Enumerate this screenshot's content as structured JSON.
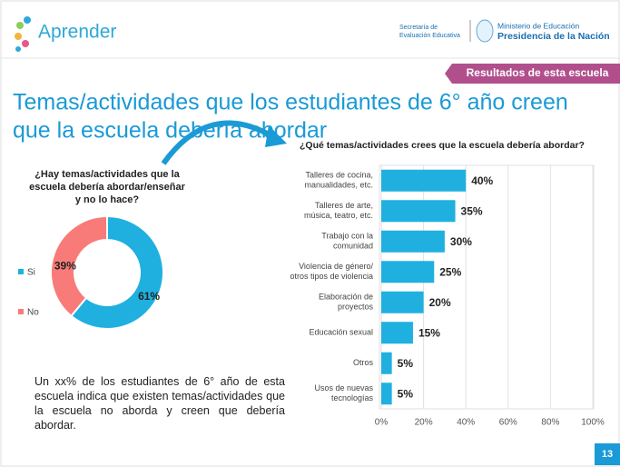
{
  "header": {
    "logo": "Aprender",
    "secretaria": [
      "Secretaría de",
      "Evaluación Educativa"
    ],
    "ministerio": [
      "Ministerio de Educación",
      "Presidencia de la Nación"
    ],
    "tab": "Resultados de esta escuela"
  },
  "title": [
    "Temas/actividades que los estudiantes de 6° año creen",
    "que la escuela debería abordar"
  ],
  "paragraph": "Un xx% de los estudiantes de 6° año de esta escuela indica que existen temas/actividades que la escuela no aborda y creen que debería abordar.",
  "page_number": "13",
  "chart_data": [
    {
      "type": "pie",
      "title": [
        "¿Hay temas/actividades que la",
        "escuela debería abordar/enseñar",
        "y no lo hace?"
      ],
      "categories": [
        "Si",
        "No"
      ],
      "values": [
        61,
        39
      ],
      "value_labels": [
        "61%",
        "39%"
      ],
      "colors": [
        "#1fb0e0",
        "#f87b79"
      ],
      "donut": true,
      "legend": "left"
    },
    {
      "type": "barh",
      "title": "¿Qué temas/actividades crees que la escuela debería abordar?",
      "categories": [
        "Talleres de cocina,\nmanualidades, etc.",
        "Talleres de arte,\nmúsica, teatro, etc.",
        "Trabajo con la\ncomunidad",
        "Violencia de género/\notros tipos de violencia",
        "Elaboración de\nproyectos",
        "Educación sexual",
        "Otros",
        "Usos de nuevas\ntecnologías"
      ],
      "values": [
        40,
        35,
        30,
        25,
        20,
        15,
        5,
        5
      ],
      "value_labels": [
        "40%",
        "35%",
        "30%",
        "25%",
        "20%",
        "15%",
        "5%",
        "5%"
      ],
      "color": "#1fb0e0",
      "xlim": [
        0,
        100
      ],
      "xticks": [
        {
          "value": 0,
          "label": "0%"
        },
        {
          "value": 20,
          "label": "20%"
        },
        {
          "value": 40,
          "label": "40%"
        },
        {
          "value": 60,
          "label": "60%"
        },
        {
          "value": 80,
          "label": "80%"
        },
        {
          "value": 100,
          "label": "100%"
        }
      ],
      "grid": true
    }
  ]
}
